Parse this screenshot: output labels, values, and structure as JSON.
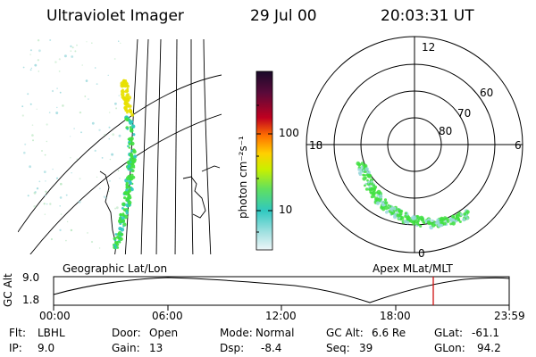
{
  "header": {
    "instrument": "Ultraviolet Imager",
    "date": "29 Jul 00",
    "time": "20:03:31 UT"
  },
  "colorbar": {
    "unit_label": "photon cm⁻²s⁻¹",
    "ticks": [
      "100",
      "10"
    ],
    "colors": [
      "#1a0a2a",
      "#5a0a3a",
      "#c00020",
      "#ff7000",
      "#ffd000",
      "#c8f000",
      "#40e080",
      "#30c8c0",
      "#e8f4f8"
    ]
  },
  "polar_plot": {
    "mlt_labels": {
      "top": "12",
      "left": "18",
      "right": "6",
      "bottom": "0"
    },
    "lat_labels": [
      "60",
      "70",
      "80"
    ],
    "oval_color": "#40e040"
  },
  "left_map": {
    "oval_color": "#40e040",
    "bright_color": "#e8e000"
  },
  "timeline": {
    "left_caption": "Geographic Lat/Lon",
    "right_caption": "Apex MLat/MLT",
    "axis_title": "GC Alt",
    "y_ticks": [
      "9.0",
      "1.8"
    ],
    "x_ticks": [
      "00:00",
      "06:00",
      "12:00",
      "18:00",
      "23:59"
    ],
    "marker_color": "#d01010"
  },
  "info": {
    "flt_label": "Flt:",
    "flt_value": "LBHL",
    "ip_label": "IP:",
    "ip_value": "9.0",
    "door_label": "Door:",
    "door_value": "Open",
    "gain_label": "Gain:",
    "gain_value": "13",
    "mode_label": "Mode:",
    "mode_value": "Normal",
    "dsp_label": "Dsp:",
    "dsp_value": "-8.4",
    "gcalt_label": "GC Alt:",
    "gcalt_value": "6.6 Re",
    "seq_label": "Seq:",
    "seq_value": "39",
    "glat_label": "GLat:",
    "glat_value": "-61.1",
    "glon_label": "GLon:",
    "glon_value": "94.2"
  }
}
